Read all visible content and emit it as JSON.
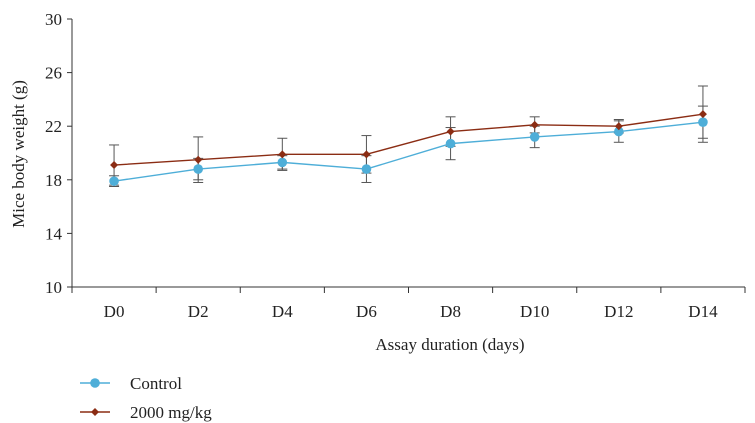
{
  "chart_data": {
    "type": "line",
    "xlabel": "Assay duration (days)",
    "ylabel": "Mice body weight (g)",
    "categories": [
      "D0",
      "D2",
      "D4",
      "D6",
      "D8",
      "D10",
      "D12",
      "D14"
    ],
    "ylim": [
      10,
      30
    ],
    "yticks": [
      "10",
      "14",
      "18",
      "22",
      "26",
      "30"
    ],
    "grid": false,
    "legend_position": "bottom-left",
    "series": [
      {
        "name": "Control",
        "color": "#4eaed8",
        "marker": "circle",
        "values": [
          17.9,
          18.8,
          19.3,
          18.8,
          20.7,
          21.2,
          21.6,
          22.3
        ],
        "error": [
          0.4,
          0.8,
          0.5,
          1.0,
          1.2,
          0.8,
          0.8,
          1.2
        ]
      },
      {
        "name": "2000 mg/kg",
        "color": "#8b2d14",
        "marker": "diamond",
        "values": [
          19.1,
          19.5,
          19.9,
          19.9,
          21.6,
          22.1,
          22.0,
          22.9
        ],
        "error": [
          1.5,
          1.7,
          1.2,
          1.4,
          1.1,
          0.6,
          0.5,
          2.1
        ]
      }
    ]
  }
}
